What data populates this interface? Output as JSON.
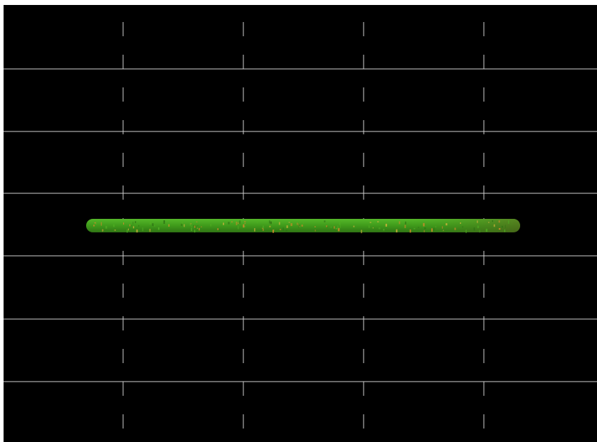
{
  "colors": {
    "background": "#000000",
    "frame": "#ffffff",
    "grid": "#cfcfcf",
    "bar_base": "#3f9a1b",
    "bar_light": "#4fae22",
    "bar_dark": "#2f7414",
    "bar_end": "#4a6b1a",
    "speckle_orange": "#d08a2a",
    "speckle_yellow": "#c9b23a"
  },
  "objects": {
    "grid": "dashed-grid",
    "bar": "green-horizontal-bar"
  }
}
